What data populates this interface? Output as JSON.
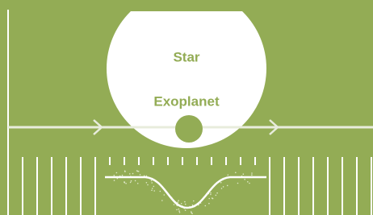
{
  "labels": {
    "star": "Star",
    "planet": "Exoplanet"
  }
}
